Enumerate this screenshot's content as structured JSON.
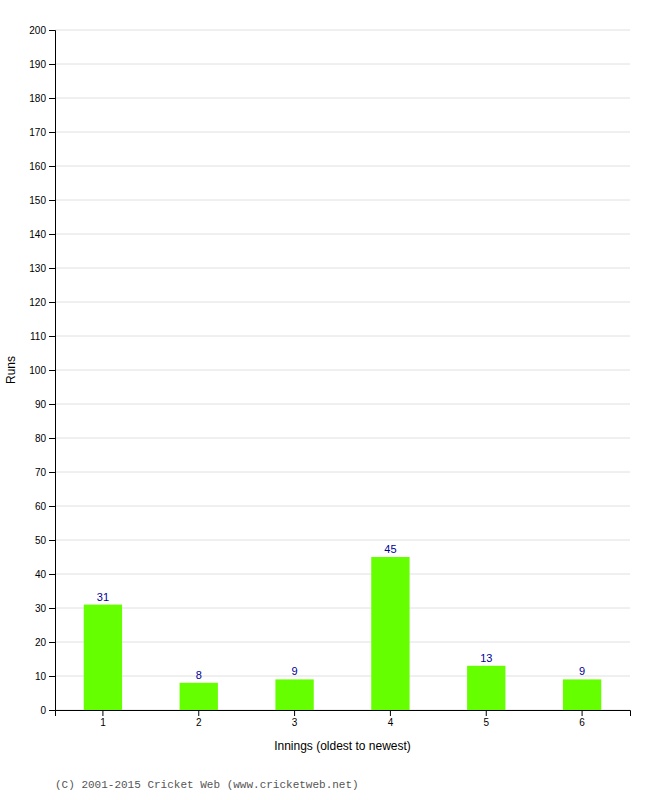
{
  "chart_data": {
    "type": "bar",
    "categories": [
      "1",
      "2",
      "3",
      "4",
      "5",
      "6"
    ],
    "values": [
      31,
      8,
      9,
      45,
      13,
      9
    ],
    "color": "#66ff00",
    "xlabel": "Innings (oldest to newest)",
    "ylabel": "Runs",
    "ylim": [
      0,
      200
    ],
    "yticks": [
      0,
      10,
      20,
      30,
      40,
      50,
      60,
      70,
      80,
      90,
      100,
      110,
      120,
      130,
      140,
      150,
      160,
      170,
      180,
      190,
      200
    ],
    "grid": true,
    "data_labels": true,
    "annotations": [
      "(C) 2001-2015 Cricket Web (www.cricketweb.net)"
    ]
  }
}
